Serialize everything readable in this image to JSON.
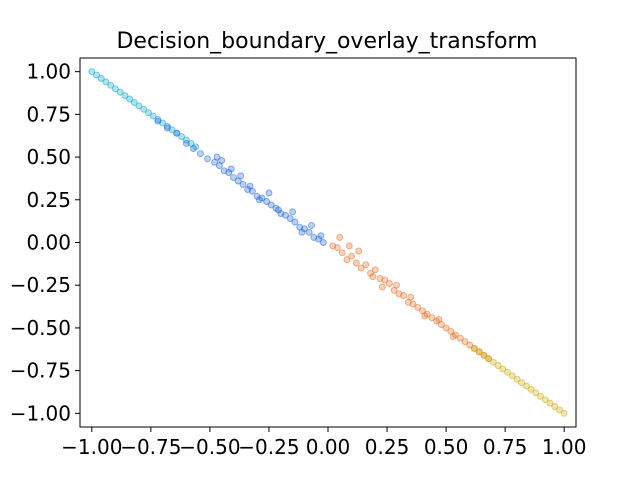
{
  "chart_data": {
    "type": "scatter",
    "title": "Decision_boundary_overlay_transform",
    "xlabel": "",
    "ylabel": "",
    "xlim": [
      -1.05,
      1.05
    ],
    "ylim": [
      -1.08,
      1.08
    ],
    "xticks": [
      -1.0,
      -0.75,
      -0.5,
      -0.25,
      0.0,
      0.25,
      0.5,
      0.75,
      1.0
    ],
    "xtick_labels": [
      "−1.00",
      "−0.75",
      "−0.50",
      "−0.25",
      "0.00",
      "0.25",
      "0.50",
      "0.75",
      "1.00"
    ],
    "yticks": [
      1.0,
      0.75,
      0.5,
      0.25,
      0.0,
      -0.25,
      -0.5,
      -0.75,
      -1.0
    ],
    "ytick_labels": [
      "1.00",
      "0.75",
      "0.50",
      "0.25",
      "0.00",
      "−0.25",
      "−0.50",
      "−0.75",
      "−1.00"
    ],
    "grid": false,
    "legend": "none",
    "series": [
      {
        "color": "#00a0c8",
        "x": [
          -1.0,
          -0.98,
          -0.96,
          -0.94,
          -0.92,
          -0.9,
          -0.88,
          -0.86,
          -0.84,
          -0.82,
          -0.8,
          -0.78,
          -0.76,
          -0.74,
          -0.72,
          -0.7,
          -0.68,
          -0.66,
          -0.64,
          -0.62,
          -0.6,
          -0.58,
          -0.56
        ],
        "y": [
          1.0,
          0.98,
          0.96,
          0.94,
          0.92,
          0.9,
          0.88,
          0.86,
          0.84,
          0.82,
          0.8,
          0.78,
          0.76,
          0.74,
          0.72,
          0.7,
          0.68,
          0.66,
          0.64,
          0.62,
          0.6,
          0.58,
          0.56
        ]
      },
      {
        "color": "#1a5fd6",
        "x": [
          -0.72,
          -0.68,
          -0.64,
          -0.6,
          -0.57,
          -0.54,
          -0.51,
          -0.48,
          -0.46,
          -0.44,
          -0.42,
          -0.4,
          -0.38,
          -0.36,
          -0.34,
          -0.32,
          -0.3,
          -0.28,
          -0.26,
          -0.24,
          -0.22,
          -0.2,
          -0.18,
          -0.16,
          -0.14,
          -0.12,
          -0.1,
          -0.08,
          -0.06,
          -0.04,
          -0.02,
          -0.47,
          -0.45,
          -0.41,
          -0.37,
          -0.33,
          -0.29,
          -0.25,
          -0.21,
          -0.15,
          -0.11,
          -0.07,
          -0.03
        ],
        "y": [
          0.71,
          0.67,
          0.64,
          0.58,
          0.55,
          0.52,
          0.49,
          0.47,
          0.45,
          0.42,
          0.41,
          0.38,
          0.36,
          0.34,
          0.31,
          0.3,
          0.27,
          0.26,
          0.24,
          0.22,
          0.2,
          0.17,
          0.16,
          0.14,
          0.12,
          0.09,
          0.08,
          0.06,
          0.03,
          0.02,
          0.0,
          0.5,
          0.48,
          0.43,
          0.39,
          0.33,
          0.25,
          0.29,
          0.19,
          0.18,
          0.06,
          0.1,
          0.04
        ]
      },
      {
        "color": "#e06a1e",
        "x": [
          0.02,
          0.04,
          0.06,
          0.08,
          0.1,
          0.12,
          0.14,
          0.16,
          0.18,
          0.2,
          0.22,
          0.24,
          0.26,
          0.28,
          0.3,
          0.32,
          0.34,
          0.36,
          0.38,
          0.4,
          0.42,
          0.44,
          0.46,
          0.48,
          0.5,
          0.52,
          0.54,
          0.56,
          0.58,
          0.6,
          0.62,
          0.64,
          0.66,
          0.68,
          0.05,
          0.09,
          0.13,
          0.19,
          0.23,
          0.29,
          0.35,
          0.41,
          0.47,
          0.53
        ],
        "y": [
          -0.02,
          -0.03,
          -0.06,
          -0.1,
          -0.08,
          -0.12,
          -0.15,
          -0.13,
          -0.18,
          -0.16,
          -0.21,
          -0.22,
          -0.24,
          -0.28,
          -0.3,
          -0.31,
          -0.35,
          -0.36,
          -0.38,
          -0.4,
          -0.42,
          -0.44,
          -0.46,
          -0.48,
          -0.5,
          -0.52,
          -0.54,
          -0.56,
          -0.58,
          -0.6,
          -0.62,
          -0.64,
          -0.66,
          -0.68,
          0.03,
          -0.02,
          -0.05,
          -0.2,
          -0.26,
          -0.25,
          -0.32,
          -0.43,
          -0.45,
          -0.55
        ]
      },
      {
        "color": "#c8a800",
        "x": [
          0.62,
          0.64,
          0.66,
          0.68,
          0.7,
          0.72,
          0.74,
          0.76,
          0.78,
          0.8,
          0.82,
          0.84,
          0.86,
          0.88,
          0.9,
          0.92,
          0.94,
          0.96,
          0.98,
          1.0
        ],
        "y": [
          -0.62,
          -0.64,
          -0.66,
          -0.68,
          -0.7,
          -0.72,
          -0.74,
          -0.76,
          -0.78,
          -0.8,
          -0.82,
          -0.84,
          -0.86,
          -0.88,
          -0.9,
          -0.92,
          -0.94,
          -0.96,
          -0.98,
          -1.0
        ]
      }
    ]
  }
}
